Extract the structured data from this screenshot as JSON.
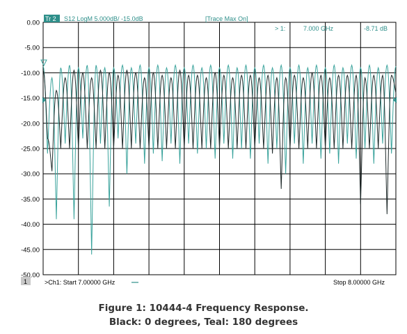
{
  "header": {
    "trace_tag": "Tr 2",
    "trace_desc": "S12 LogM 5.000dB/  -15.0dB",
    "trace_max": "[Trace Max On]"
  },
  "marker": {
    "label": "> 1:",
    "freq": "7.000 GHz",
    "value": "-8.71 dB"
  },
  "footer": {
    "channel_number": "1",
    "start_label": ">Ch1:  Start  7.00000 GHz",
    "stop_label": "Stop  8.00000 GHz"
  },
  "caption": {
    "line1": "Figure 1: 10444-4 Frequency Response.",
    "line2": "Black: 0 degrees, Teal: 180 degrees"
  },
  "colors": {
    "black_trace": "#1f2a2a",
    "teal_trace": "#3aa39c",
    "grid": "#000000",
    "header_text": "#2e8f8a",
    "tag_bg": "#2e8f8a"
  },
  "chart_data": {
    "type": "line",
    "x_range_ghz": [
      7.0,
      8.0
    ],
    "ylim": [
      -50,
      0
    ],
    "y_ticks": [
      "0.00",
      "-5.00",
      "-10.00",
      "-15.00",
      "-20.00",
      "-25.00",
      "-30.00",
      "-35.00",
      "-40.00",
      "-45.00",
      "-50.00"
    ],
    "reference_level": -15,
    "grid": true,
    "series": [
      {
        "color": "#1f2a2a",
        "x": [
          7.0,
          7.0125,
          7.025,
          7.0375,
          7.05,
          7.0625,
          7.075,
          7.0875,
          7.1,
          7.1125,
          7.125,
          7.1375,
          7.15,
          7.1625,
          7.175,
          7.1875,
          7.2,
          7.2125,
          7.225,
          7.2375,
          7.25,
          7.2625,
          7.275,
          7.2875,
          7.3,
          7.3125,
          7.325,
          7.3375,
          7.35,
          7.3625,
          7.375,
          7.3875,
          7.4,
          7.4125,
          7.425,
          7.4375,
          7.45,
          7.4625,
          7.475,
          7.4875,
          7.5,
          7.5125,
          7.525,
          7.5375,
          7.55,
          7.5625,
          7.575,
          7.5875,
          7.6,
          7.6125,
          7.625,
          7.6375,
          7.65,
          7.6625,
          7.675,
          7.6875,
          7.7,
          7.7125,
          7.725,
          7.7375,
          7.75,
          7.7625,
          7.775,
          7.7875,
          7.8,
          7.8125,
          7.825,
          7.8375,
          7.85,
          7.8625,
          7.875,
          7.8875,
          7.9,
          7.9125,
          7.925,
          7.9375,
          7.95,
          7.9625,
          7.975,
          7.9875,
          8.0
        ],
        "y": [
          -9.5,
          -23,
          -29.5,
          -13.5,
          -25,
          -11,
          -25,
          -9.5,
          -25,
          -10,
          -25,
          -11,
          -25,
          -9.5,
          -25,
          -10,
          -25,
          -10.5,
          -25,
          -9.5,
          -25,
          -10,
          -25,
          -11,
          -25,
          -10,
          -25,
          -10.5,
          -25,
          -11,
          -25,
          -9.5,
          -25,
          -10.5,
          -25,
          -10.5,
          -25,
          -11,
          -25,
          -10,
          -25,
          -10.5,
          -25,
          -11,
          -25,
          -10.5,
          -25,
          -10.5,
          -25,
          -11,
          -25,
          -10.5,
          -26,
          -11,
          -33,
          -11,
          -25,
          -10.5,
          -25,
          -11,
          -25,
          -10,
          -25,
          -10.5,
          -25,
          -11,
          -25,
          -10.5,
          -25,
          -10.5,
          -25,
          -10.5,
          -36,
          -11,
          -25,
          -10.5,
          -25,
          -10.5,
          -38,
          -10.5,
          -14
        ]
      },
      {
        "color": "#3aa39c",
        "x": [
          7.0,
          7.0125,
          7.025,
          7.0375,
          7.05,
          7.0625,
          7.075,
          7.0875,
          7.1,
          7.1125,
          7.125,
          7.1375,
          7.15,
          7.1625,
          7.175,
          7.1875,
          7.2,
          7.2125,
          7.225,
          7.2375,
          7.25,
          7.2625,
          7.275,
          7.2875,
          7.3,
          7.3125,
          7.325,
          7.3375,
          7.35,
          7.3625,
          7.375,
          7.3875,
          7.4,
          7.4125,
          7.425,
          7.4375,
          7.45,
          7.4625,
          7.475,
          7.4875,
          7.5,
          7.5125,
          7.525,
          7.5375,
          7.55,
          7.5625,
          7.575,
          7.5875,
          7.6,
          7.6125,
          7.625,
          7.6375,
          7.65,
          7.6625,
          7.675,
          7.6875,
          7.7,
          7.7125,
          7.725,
          7.7375,
          7.75,
          7.7625,
          7.775,
          7.7875,
          7.8,
          7.8125,
          7.825,
          7.8375,
          7.85,
          7.8625,
          7.875,
          7.8875,
          7.9,
          7.9125,
          7.925,
          7.9375,
          7.95,
          7.9625,
          7.975,
          7.9875,
          8.0
        ],
        "y": [
          -8.7,
          -26,
          -11,
          -39,
          -9,
          -24,
          -8.5,
          -39,
          -9,
          -23,
          -8.5,
          -46,
          -8.5,
          -24,
          -9,
          -36.5,
          -9,
          -23,
          -8.5,
          -30,
          -9,
          -24,
          -8.5,
          -28,
          -9,
          -26,
          -8.5,
          -27.5,
          -9,
          -24,
          -8.5,
          -28,
          -9,
          -24,
          -8.5,
          -26,
          -9,
          -25,
          -8.5,
          -27,
          -9,
          -24,
          -8.5,
          -27,
          -9,
          -25,
          -8.5,
          -27,
          -9,
          -24,
          -8.5,
          -28,
          -9,
          -25,
          -8.5,
          -30,
          -9,
          -24,
          -8.5,
          -28,
          -9,
          -24,
          -8.5,
          -27,
          -9,
          -26,
          -8.5,
          -28,
          -9,
          -24,
          -8.5,
          -27,
          -9,
          -25,
          -8.5,
          -28,
          -9,
          -24,
          -8.5,
          -26,
          -8.7
        ]
      }
    ]
  }
}
